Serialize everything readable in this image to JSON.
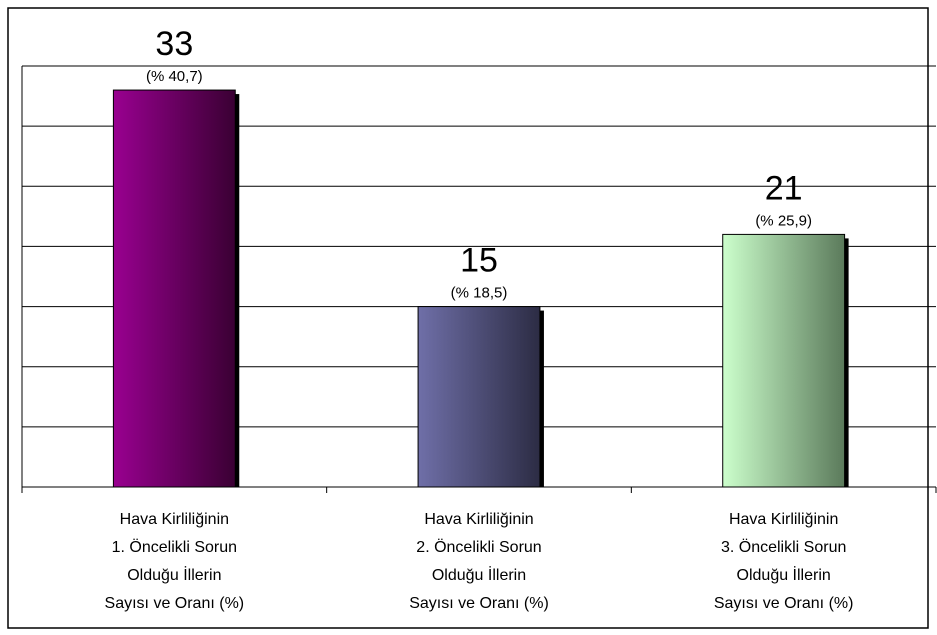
{
  "chart_data": {
    "type": "bar",
    "categories": [
      [
        "Hava Kirliliğinin",
        "1. Öncelikli Sorun",
        "Olduğu İllerin",
        "Sayısı ve Oranı (%)"
      ],
      [
        "Hava Kirliliğinin",
        "2. Öncelikli Sorun",
        "Olduğu İllerin",
        "Sayısı ve Oranı (%)"
      ],
      [
        "Hava Kirliliğinin",
        "3. Öncelikli Sorun",
        "Olduğu İllerin",
        "Sayısı ve Oranı (%)"
      ]
    ],
    "values": [
      33,
      15,
      21
    ],
    "percentages": [
      40.7,
      18.5,
      25.9
    ],
    "percentage_labels": [
      "(% 40,7)",
      "(% 18,5)",
      "(% 25,9)"
    ],
    "colors": [
      [
        "#990090",
        "#3a0033"
      ],
      [
        "#6f6fa8",
        "#2c2c44"
      ],
      [
        "#ccffcc",
        "#5b7a5b"
      ]
    ],
    "ylim": [
      0,
      35
    ],
    "yticks": [
      0,
      5,
      10,
      15,
      20,
      25,
      30,
      35
    ],
    "grid": true
  }
}
